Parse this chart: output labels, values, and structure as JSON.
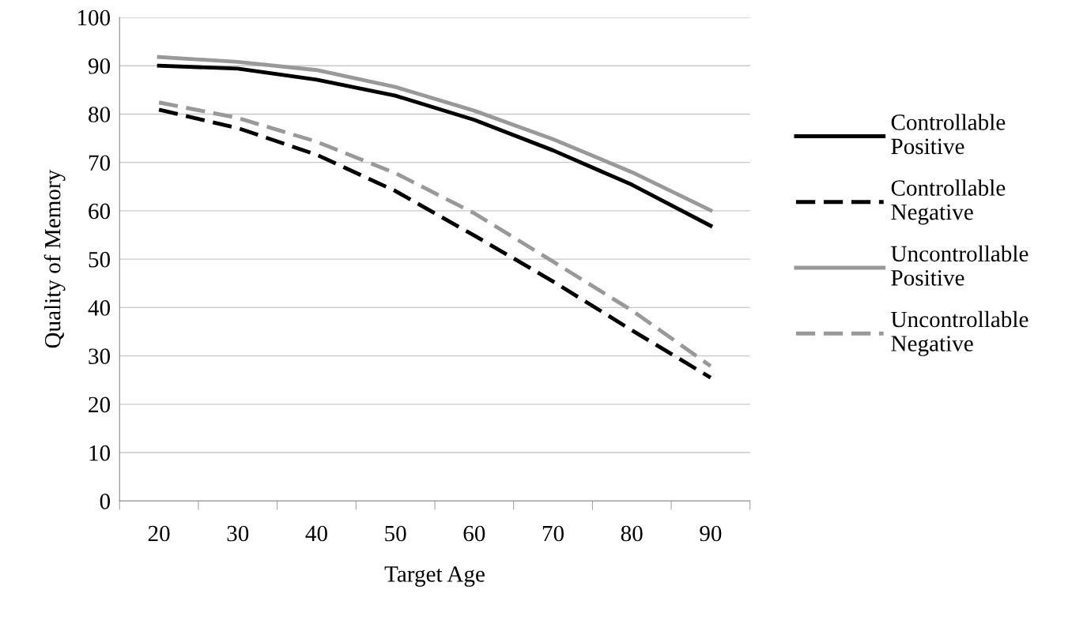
{
  "chart_data": {
    "type": "line",
    "xlabel": "Target Age",
    "ylabel": "Quality of Memory",
    "categories": [
      "20",
      "30",
      "40",
      "50",
      "60",
      "70",
      "80",
      "90"
    ],
    "series": [
      {
        "name": "Controllable\nPositive",
        "color": "#000000",
        "line_style": "solid",
        "values": [
          90.0,
          89.4,
          87.1,
          83.8,
          78.8,
          72.5,
          65.4,
          56.9
        ]
      },
      {
        "name": "Controllable\nNegative",
        "color": "#000000",
        "line_style": "dashed",
        "values": [
          80.9,
          77.1,
          71.6,
          64.1,
          54.9,
          45.4,
          35.3,
          25.5
        ]
      },
      {
        "name": "Uncontrollable\nPositive",
        "color": "#999999",
        "line_style": "solid",
        "values": [
          91.8,
          90.8,
          89.1,
          85.6,
          80.7,
          74.8,
          68.0,
          60.1
        ]
      },
      {
        "name": "Uncontrollable\nNegative",
        "color": "#999999",
        "line_style": "dashed",
        "values": [
          82.4,
          79.2,
          74.3,
          67.8,
          59.5,
          49.5,
          39.4,
          27.9
        ]
      }
    ],
    "ylim": [
      0,
      100
    ],
    "yticks": [
      0,
      10,
      20,
      30,
      40,
      50,
      60,
      70,
      80,
      90,
      100
    ],
    "grid": "y",
    "legend": "right",
    "marker": "none"
  }
}
